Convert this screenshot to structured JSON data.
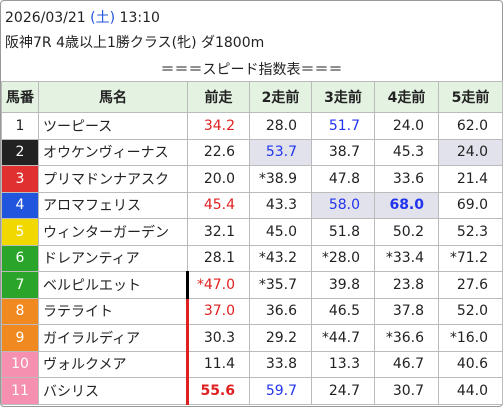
{
  "header": {
    "datetime_prefix": "2026/03/21",
    "weekday": "(土)",
    "time": "13:10",
    "race": "阪神7R 4歳以上1勝クラス(牝) ダ1800m",
    "title": "＝＝＝スピード指数表＝＝＝"
  },
  "table": {
    "columns": [
      "馬番",
      "馬名",
      "前走",
      "2走前",
      "3走前",
      "4走前",
      "5走前"
    ],
    "rows": [
      [
        "1",
        "ツーピース",
        "34.2",
        "28.0",
        "51.7",
        "24.0",
        "62.0"
      ],
      [
        "2",
        "オウケンヴィーナス",
        "22.6",
        "53.7",
        "38.7",
        "45.3",
        "24.0"
      ],
      [
        "3",
        "プリマドンナアスク",
        "20.0",
        "*38.9",
        "47.8",
        "33.6",
        "21.4"
      ],
      [
        "4",
        "アロマフェリス",
        "45.4",
        "43.3",
        "58.0",
        "68.0",
        "69.0"
      ],
      [
        "5",
        "ウィンターガーデン",
        "32.1",
        "45.0",
        "51.8",
        "50.2",
        "52.3"
      ],
      [
        "6",
        "ドレアンティア",
        "28.1",
        "*43.2",
        "*28.0",
        "*33.4",
        "*71.2"
      ],
      [
        "7",
        "ベルピルエット",
        "*47.0",
        "*35.7",
        "39.8",
        "23.8",
        "27.6"
      ],
      [
        "8",
        "ラテライト",
        "37.0",
        "36.6",
        "46.5",
        "37.8",
        "52.0"
      ],
      [
        "9",
        "ガイラルディア",
        "30.3",
        "29.2",
        "*44.7",
        "*36.6",
        "*16.0"
      ],
      [
        "10",
        "ヴォルクメア",
        "11.4",
        "33.8",
        "13.3",
        "46.7",
        "40.6"
      ],
      [
        "11",
        "バシリス",
        "55.6",
        "59.7",
        "24.7",
        "30.7",
        "44.0"
      ]
    ]
  }
}
